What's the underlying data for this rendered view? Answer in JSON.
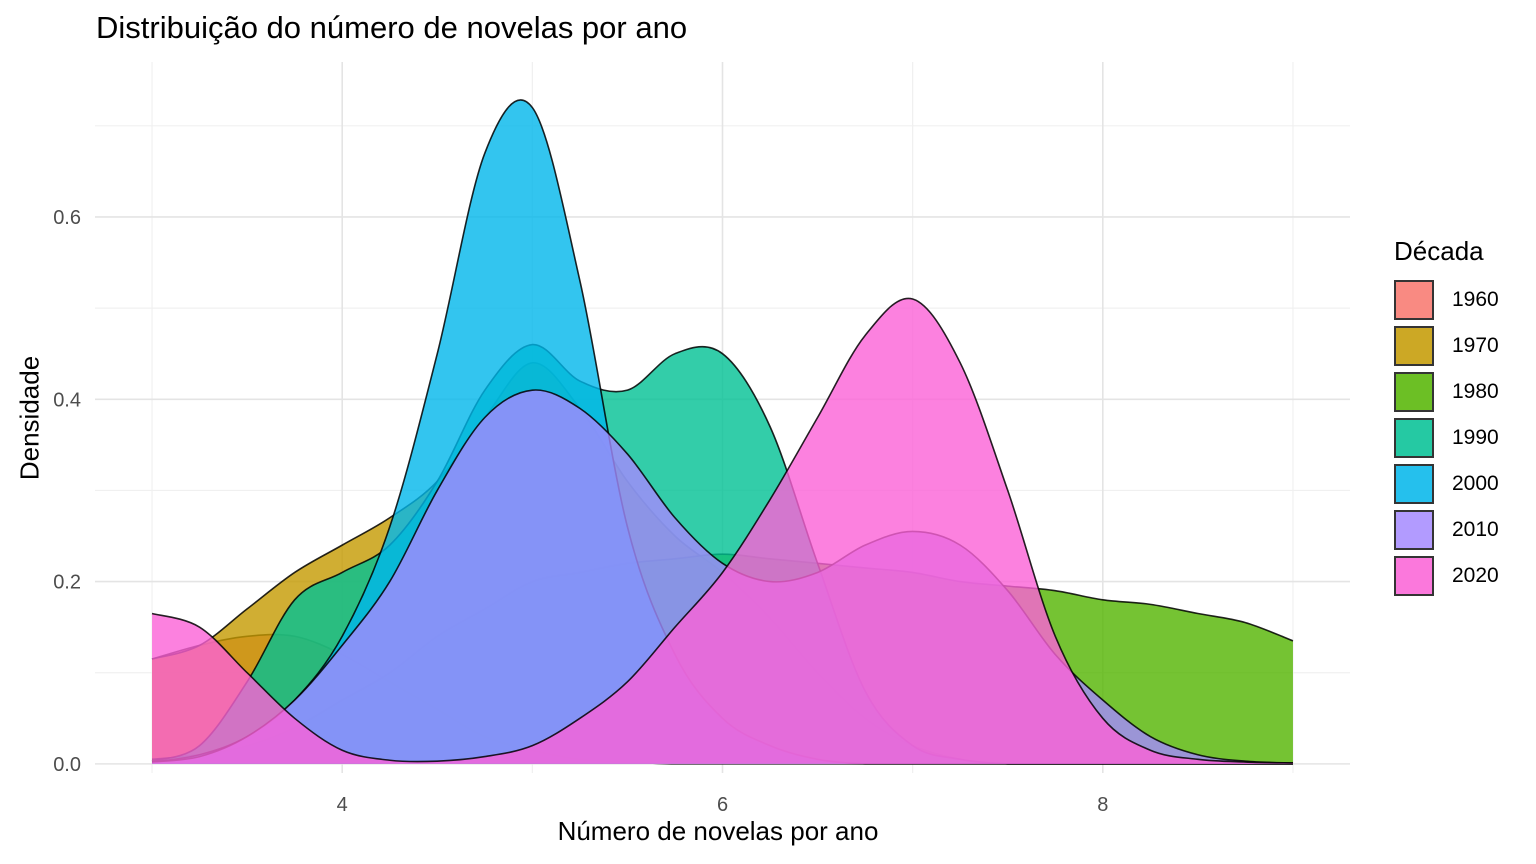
{
  "chart_data": {
    "type": "area",
    "subtype": "density",
    "title": "Distribuição do número de novelas por ano",
    "xlabel": "Número de novelas por ano",
    "ylabel": "Densidade",
    "xlim": [
      2.7,
      9.3
    ],
    "ylim": [
      -0.01,
      0.77
    ],
    "xticks": [
      4,
      6,
      8
    ],
    "yticks": [
      0.0,
      0.2,
      0.4,
      0.6
    ],
    "xtick_labels": [
      "4",
      "6",
      "8"
    ],
    "ytick_labels": [
      "0.0",
      "0.2",
      "0.4",
      "0.6"
    ],
    "grid": true,
    "legend_title": "Década",
    "legend_position": "right",
    "x": [
      3.0,
      3.25,
      3.5,
      3.75,
      4.0,
      4.25,
      4.5,
      4.75,
      5.0,
      5.25,
      5.5,
      5.75,
      6.0,
      6.25,
      6.5,
      6.75,
      7.0,
      7.25,
      7.5,
      7.75,
      8.0,
      8.25,
      8.5,
      8.75,
      9.0
    ],
    "series": [
      {
        "name": "1960",
        "color": "#F8766D",
        "values": [
          0.115,
          0.13,
          0.14,
          0.14,
          0.12,
          0.09,
          0.06,
          0.03,
          0.015,
          0.005,
          0.002,
          0.0,
          0.0,
          0.0,
          0.0,
          0.0,
          0.0,
          0.0,
          0.0,
          0.0,
          0.0,
          0.0,
          0.0,
          0.0,
          0.0
        ]
      },
      {
        "name": "1970",
        "color": "#C49A00",
        "values": [
          0.115,
          0.13,
          0.17,
          0.21,
          0.24,
          0.27,
          0.31,
          0.38,
          0.44,
          0.39,
          0.31,
          0.25,
          0.21,
          0.16,
          0.1,
          0.05,
          0.02,
          0.005,
          0.0,
          0.0,
          0.0,
          0.0,
          0.0,
          0.0,
          0.0
        ]
      },
      {
        "name": "1980",
        "color": "#53B400",
        "values": [
          0.005,
          0.01,
          0.02,
          0.04,
          0.07,
          0.1,
          0.14,
          0.17,
          0.2,
          0.21,
          0.22,
          0.225,
          0.23,
          0.225,
          0.22,
          0.215,
          0.21,
          0.2,
          0.195,
          0.19,
          0.18,
          0.175,
          0.165,
          0.155,
          0.135
        ]
      },
      {
        "name": "1990",
        "color": "#00C094",
        "values": [
          0.003,
          0.02,
          0.09,
          0.18,
          0.21,
          0.24,
          0.31,
          0.41,
          0.46,
          0.42,
          0.41,
          0.45,
          0.45,
          0.37,
          0.22,
          0.08,
          0.02,
          0.005,
          0.0,
          0.0,
          0.0,
          0.0,
          0.0,
          0.0,
          0.0
        ]
      },
      {
        "name": "2000",
        "color": "#00B6EB",
        "values": [
          0.002,
          0.01,
          0.03,
          0.07,
          0.14,
          0.26,
          0.45,
          0.67,
          0.72,
          0.53,
          0.26,
          0.12,
          0.05,
          0.02,
          0.005,
          0.0,
          0.0,
          0.0,
          0.0,
          0.0,
          0.0,
          0.0,
          0.0,
          0.0,
          0.0
        ]
      },
      {
        "name": "2010",
        "color": "#A58AFF",
        "values": [
          0.002,
          0.008,
          0.03,
          0.07,
          0.13,
          0.2,
          0.3,
          0.38,
          0.41,
          0.39,
          0.34,
          0.27,
          0.22,
          0.2,
          0.21,
          0.24,
          0.255,
          0.24,
          0.19,
          0.12,
          0.07,
          0.03,
          0.01,
          0.003,
          0.001
        ]
      },
      {
        "name": "2020",
        "color": "#FB61D7",
        "values": [
          0.165,
          0.15,
          0.1,
          0.05,
          0.015,
          0.004,
          0.003,
          0.008,
          0.02,
          0.05,
          0.09,
          0.15,
          0.21,
          0.29,
          0.38,
          0.47,
          0.51,
          0.44,
          0.3,
          0.14,
          0.05,
          0.015,
          0.005,
          0.002,
          0.001
        ]
      }
    ]
  }
}
